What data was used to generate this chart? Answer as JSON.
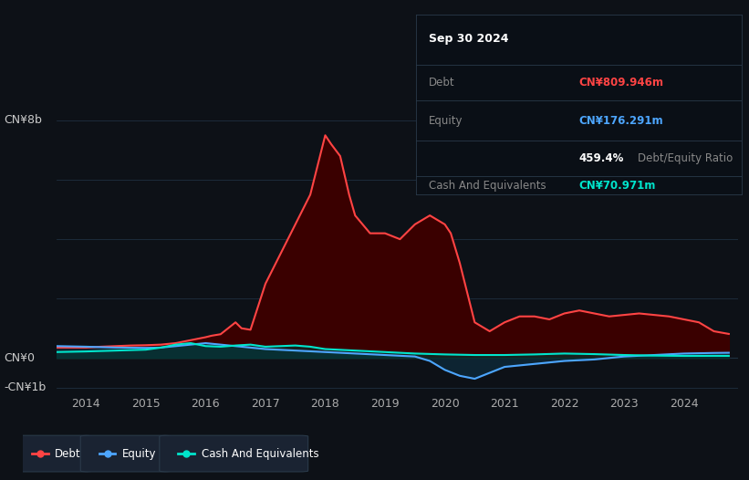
{
  "bg_color": "#0d1117",
  "plot_bg_color": "#0d1117",
  "grid_color": "#1e2a3a",
  "title_text": "Sep 30 2024",
  "ylabel_top": "CN¥8b",
  "ylabel_zero": "CN¥0",
  "ylabel_bottom": "-CN¥1b",
  "ylim_min": -1200,
  "ylim_max": 8500,
  "xlim_min": 2013.5,
  "xlim_max": 2024.9,
  "debt_color": "#ff4444",
  "equity_color": "#4da6ff",
  "cash_color": "#00e5cc",
  "debt_fill_color": "#3a0000",
  "equity_fill_color": "#0d2a3a",
  "cash_fill_color": "#003a35",
  "legend_box_color": "#1a2332",
  "legend_box_edge": "#2a3a4a",
  "info_box_color": "#0a0f16",
  "info_divider_color": "#2a3a4a",
  "info_title": "Sep 30 2024",
  "info_debt_label": "Debt",
  "info_debt_value": "CN¥809.946m",
  "info_equity_label": "Equity",
  "info_equity_value": "CN¥176.291m",
  "info_ratio": "459.4%",
  "info_ratio_label": "Debt/Equity Ratio",
  "info_cash_label": "Cash And Equivalents",
  "info_cash_value": "CN¥70.971m",
  "xtick_years": [
    2014,
    2015,
    2016,
    2017,
    2018,
    2019,
    2020,
    2021,
    2022,
    2023,
    2024
  ],
  "xtick_labels": [
    "2014",
    "2015",
    "2016",
    "2017",
    "2018",
    "2019",
    "2020",
    "2021",
    "2022",
    "2023",
    "2024"
  ],
  "debt_data_x": [
    2013.5,
    2014.0,
    2014.25,
    2014.5,
    2014.75,
    2015.0,
    2015.25,
    2015.5,
    2015.75,
    2016.0,
    2016.1,
    2016.25,
    2016.5,
    2016.6,
    2016.75,
    2017.0,
    2017.25,
    2017.5,
    2017.75,
    2018.0,
    2018.1,
    2018.25,
    2018.4,
    2018.5,
    2018.75,
    2019.0,
    2019.25,
    2019.5,
    2019.75,
    2020.0,
    2020.1,
    2020.25,
    2020.5,
    2020.75,
    2021.0,
    2021.25,
    2021.5,
    2021.75,
    2022.0,
    2022.25,
    2022.5,
    2022.75,
    2023.0,
    2023.25,
    2023.5,
    2023.75,
    2024.0,
    2024.25,
    2024.5,
    2024.75
  ],
  "debt_data_y": [
    350,
    350,
    380,
    400,
    420,
    430,
    450,
    500,
    600,
    700,
    750,
    800,
    1200,
    1000,
    950,
    2500,
    3500,
    4500,
    5500,
    7500,
    7200,
    6800,
    5500,
    4800,
    4200,
    4200,
    4000,
    4500,
    4800,
    4500,
    4200,
    3200,
    1200,
    900,
    1200,
    1400,
    1400,
    1300,
    1500,
    1600,
    1500,
    1400,
    1450,
    1500,
    1450,
    1400,
    1300,
    1200,
    900,
    810
  ],
  "equity_data_x": [
    2013.5,
    2014.0,
    2014.5,
    2015.0,
    2015.25,
    2015.5,
    2015.75,
    2016.0,
    2016.25,
    2016.5,
    2016.75,
    2017.0,
    2017.5,
    2018.0,
    2018.5,
    2019.0,
    2019.5,
    2019.75,
    2020.0,
    2020.25,
    2020.5,
    2020.75,
    2021.0,
    2021.5,
    2022.0,
    2022.5,
    2023.0,
    2023.5,
    2024.0,
    2024.5,
    2024.75
  ],
  "equity_data_y": [
    400,
    380,
    350,
    340,
    350,
    400,
    450,
    500,
    450,
    400,
    350,
    300,
    250,
    200,
    150,
    100,
    50,
    -100,
    -400,
    -600,
    -700,
    -500,
    -300,
    -200,
    -100,
    -50,
    50,
    100,
    150,
    170,
    176
  ],
  "cash_data_x": [
    2013.5,
    2014.0,
    2014.5,
    2015.0,
    2015.25,
    2015.5,
    2015.75,
    2016.0,
    2016.25,
    2016.5,
    2016.75,
    2017.0,
    2017.25,
    2017.5,
    2017.75,
    2018.0,
    2018.5,
    2019.0,
    2019.5,
    2020.0,
    2020.5,
    2021.0,
    2021.5,
    2022.0,
    2022.5,
    2023.0,
    2023.5,
    2024.0,
    2024.5,
    2024.75
  ],
  "cash_data_y": [
    200,
    220,
    250,
    280,
    350,
    450,
    500,
    400,
    380,
    420,
    450,
    380,
    400,
    420,
    380,
    300,
    250,
    200,
    150,
    120,
    100,
    100,
    120,
    150,
    130,
    100,
    80,
    70,
    72,
    71
  ]
}
